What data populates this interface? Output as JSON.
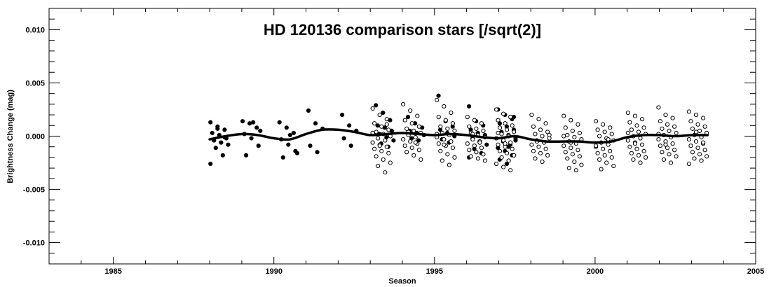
{
  "chart_data": {
    "type": "scatter",
    "title": "HD 120136 comparison stars [/sqrt(2)]",
    "xlabel": "Season",
    "ylabel": "Brightness Change (mag)",
    "xlim": [
      1983,
      2005
    ],
    "ylim": [
      -0.012,
      0.012
    ],
    "xticks": [
      1985,
      1990,
      1995,
      2000,
      2005
    ],
    "yticks": [
      0.01,
      0.005,
      0.0,
      -0.005,
      -0.01
    ],
    "xtick_labels": [
      "1985",
      "1990",
      "1995",
      "2000",
      "2005"
    ],
    "ytick_labels": [
      "0.010",
      "0.005",
      "0.000",
      "-0.005",
      "-0.010"
    ],
    "grid": false,
    "series": [
      {
        "marker": "filled-circle",
        "clusters": [
          {
            "x": 1988.3,
            "values": [
              0.0013,
              0.0009,
              0.0006,
              0.0003,
              0.0001,
              -0.0002,
              -0.0004,
              -0.0006,
              -0.0008,
              -0.0011,
              -0.0018,
              -0.0026,
              0.0007,
              -0.0001
            ]
          },
          {
            "x": 1989.3,
            "values": [
              0.0014,
              0.0012,
              0.0008,
              0.0002,
              -0.0002,
              -0.0009,
              -0.0018,
              0.0013,
              0.0005
            ]
          },
          {
            "x": 1990.45,
            "values": [
              0.0013,
              0.0008,
              0.0003,
              -0.0003,
              -0.0008,
              -0.0014,
              -0.002,
              0.0001,
              -0.0016
            ]
          },
          {
            "x": 1991.35,
            "values": [
              0.0024,
              0.0012,
              0.0007,
              -0.0009,
              -0.0015
            ]
          },
          {
            "x": 1992.4,
            "values": [
              0.002,
              0.001,
              0.0005,
              -0.0002,
              -0.0009
            ]
          },
          {
            "x": 1993.45,
            "values": [
              0.0029,
              0.0022,
              0.0015,
              0.001,
              0.0008,
              0.0005,
              0.0002,
              -0.0001,
              -0.0004,
              -0.0007,
              -0.001
            ]
          },
          {
            "x": 1994.45,
            "values": [
              0.0018,
              0.0012,
              0.0008,
              0.0005,
              0.0003,
              0.0001,
              -0.0002,
              -0.0004
            ]
          },
          {
            "x": 1995.4,
            "values": [
              0.0038,
              0.0014,
              0.0009,
              0.0006,
              0.0003,
              0.0,
              -0.0003,
              -0.0006
            ]
          },
          {
            "x": 1996.35,
            "values": [
              0.0028,
              0.0014,
              0.001,
              0.0006,
              0.0003,
              0.0001,
              -0.0002,
              -0.0005,
              -0.0008,
              -0.0012,
              -0.0016,
              -0.002
            ]
          },
          {
            "x": 1997.25,
            "values": [
              0.0025,
              0.002,
              0.0016,
              0.0012,
              0.0009,
              0.0006,
              0.0003,
              0.0001,
              -0.0002,
              -0.0005,
              -0.0008,
              -0.0011,
              -0.0014,
              -0.0018,
              -0.0022,
              -0.0026,
              0.0018,
              0.0004,
              -0.001,
              -0.0004
            ]
          }
        ]
      },
      {
        "marker": "open-circle",
        "clusters": [
          {
            "x": 1993.35,
            "values": [
              0.0026,
              0.002,
              0.0016,
              0.0012,
              0.0009,
              0.0006,
              0.0004,
              0.0002,
              0.0,
              -0.0002,
              -0.0004,
              -0.0006,
              -0.0008,
              -0.001,
              -0.0012,
              -0.0014,
              -0.0016,
              -0.0019,
              -0.0022,
              -0.0025,
              -0.0028,
              -0.0034,
              0.0003,
              -0.0009,
              0.0011
            ]
          },
          {
            "x": 1994.3,
            "values": [
              0.003,
              0.0024,
              0.0019,
              0.0015,
              0.0012,
              0.0009,
              0.0007,
              0.0005,
              0.0003,
              0.0001,
              -0.0001,
              -0.0003,
              -0.0005,
              -0.0007,
              -0.0009,
              -0.0011,
              -0.0013,
              -0.0015,
              -0.0018,
              -0.0022,
              0.0004,
              -0.0006
            ]
          },
          {
            "x": 1995.35,
            "values": [
              0.0034,
              0.0028,
              0.0022,
              0.0018,
              0.0015,
              0.0012,
              0.0009,
              0.0007,
              0.0005,
              0.0003,
              0.0001,
              -0.0001,
              -0.0003,
              -0.0005,
              -0.0007,
              -0.0009,
              -0.0011,
              -0.0014,
              -0.0017,
              -0.002,
              -0.0023,
              -0.0027,
              0.0002,
              -0.0008
            ]
          },
          {
            "x": 1996.3,
            "values": [
              0.0018,
              0.0015,
              0.0012,
              0.0009,
              0.0007,
              0.0005,
              0.0003,
              0.0001,
              -0.0001,
              -0.0003,
              -0.0005,
              -0.0007,
              -0.0009,
              -0.0011,
              -0.0013,
              -0.0015,
              -0.0017,
              -0.0019,
              -0.0021,
              -0.0023,
              0.0002,
              -0.0006
            ]
          },
          {
            "x": 1997.2,
            "values": [
              0.0025,
              0.0021,
              0.0018,
              0.0015,
              0.0012,
              0.001,
              0.0008,
              0.0006,
              0.0004,
              0.0002,
              0.0,
              -0.0002,
              -0.0004,
              -0.0006,
              -0.0008,
              -0.001,
              -0.0012,
              -0.0014,
              -0.0016,
              -0.0018,
              -0.002,
              -0.0023,
              -0.0026,
              -0.0029,
              -0.0032,
              0.0003,
              -0.0007
            ]
          },
          {
            "x": 1998.3,
            "values": [
              0.002,
              0.0016,
              0.0012,
              0.0009,
              0.0006,
              0.0004,
              0.0002,
              0.0,
              -0.0002,
              -0.0004,
              -0.0006,
              -0.0008,
              -0.001,
              -0.0012,
              -0.0014,
              -0.0016,
              -0.0018,
              -0.0021,
              -0.0024,
              0.0001,
              -0.0005
            ]
          },
          {
            "x": 1999.3,
            "values": [
              0.0019,
              0.0015,
              0.0011,
              0.0008,
              0.0005,
              0.0003,
              0.0001,
              -0.0001,
              -0.0003,
              -0.0005,
              -0.0007,
              -0.0009,
              -0.0011,
              -0.0013,
              -0.0015,
              -0.0017,
              -0.0019,
              -0.0021,
              -0.0024,
              -0.0027,
              -0.003,
              -0.0032,
              0.0,
              -0.0006
            ]
          },
          {
            "x": 2000.3,
            "values": [
              0.0014,
              0.0011,
              0.0008,
              0.0006,
              0.0004,
              0.0002,
              0.0,
              -0.0002,
              -0.0004,
              -0.0006,
              -0.0008,
              -0.001,
              -0.0012,
              -0.0014,
              -0.0016,
              -0.0018,
              -0.002,
              -0.0022,
              -0.0025,
              -0.0028,
              -0.0031,
              -0.0003,
              -0.0009
            ]
          },
          {
            "x": 2001.3,
            "values": [
              0.0022,
              0.0019,
              0.0016,
              0.0013,
              0.001,
              0.0008,
              0.0006,
              0.0004,
              0.0002,
              0.0,
              -0.0002,
              -0.0004,
              -0.0006,
              -0.0008,
              -0.001,
              -0.0012,
              -0.0014,
              -0.0016,
              -0.0018,
              -0.002,
              -0.0022,
              -0.0025,
              0.0003,
              -0.0007
            ]
          },
          {
            "x": 2002.25,
            "values": [
              0.0027,
              0.002,
              0.0017,
              0.0014,
              0.0011,
              0.0009,
              0.0007,
              0.0005,
              0.0003,
              0.0001,
              -0.0001,
              -0.0003,
              -0.0005,
              -0.0007,
              -0.0009,
              -0.0011,
              -0.0013,
              -0.0015,
              -0.0017,
              -0.0019,
              -0.0022,
              -0.0025,
              0.0002,
              -0.0008
            ]
          },
          {
            "x": 2003.2,
            "values": [
              0.0023,
              0.002,
              0.0017,
              0.0014,
              0.0011,
              0.0009,
              0.0007,
              0.0005,
              0.0003,
              0.0001,
              -0.0001,
              -0.0003,
              -0.0005,
              -0.0007,
              -0.0009,
              -0.0011,
              -0.0013,
              -0.0015,
              -0.0017,
              -0.0019,
              -0.0021,
              -0.0023,
              -0.0026,
              0.0004,
              -0.0006
            ]
          }
        ]
      },
      {
        "marker": "line",
        "x": [
          1988.0,
          1988.5,
          1989.0,
          1989.5,
          1990.0,
          1990.5,
          1991.0,
          1991.5,
          1992.0,
          1992.5,
          1993.0,
          1993.5,
          1994.0,
          1994.5,
          1995.0,
          1995.5,
          1996.0,
          1996.5,
          1997.0,
          1997.5,
          1998.0,
          1998.5,
          1999.0,
          1999.5,
          2000.0,
          2000.5,
          2001.0,
          2001.5,
          2002.0,
          2002.5,
          2003.0,
          2003.5
        ],
        "values": [
          -0.0003,
          0.0,
          0.0002,
          0.0001,
          -0.0002,
          -0.0003,
          0.0002,
          0.0006,
          0.0006,
          0.0004,
          0.0001,
          0.0002,
          0.0003,
          0.0002,
          0.0001,
          0.0002,
          0.0001,
          -0.0001,
          -0.0002,
          0.0,
          -0.0003,
          -0.0005,
          -0.0005,
          -0.0005,
          -0.0006,
          -0.0005,
          -0.0001,
          0.0001,
          0.0001,
          0.0,
          0.0001,
          0.0001
        ]
      }
    ]
  }
}
